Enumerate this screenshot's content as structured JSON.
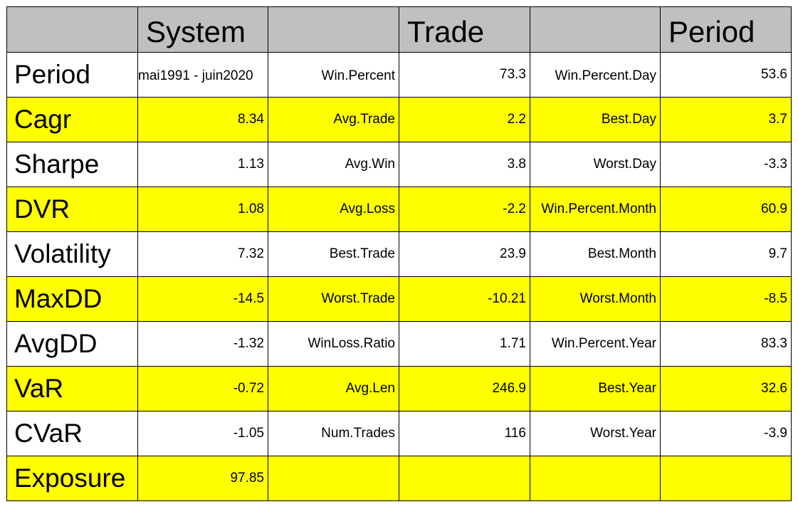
{
  "chart_data": {
    "type": "table",
    "headers": [
      "",
      "System",
      "",
      "Trade",
      "",
      "Period"
    ],
    "rows": [
      [
        "Period",
        "mai1991 - juin2020",
        "Win.Percent",
        "73.3",
        "Win.Percent.Day",
        "53.6"
      ],
      [
        "Cagr",
        "8.34",
        "Avg.Trade",
        "2.2",
        "Best.Day",
        "3.7"
      ],
      [
        "Sharpe",
        "1.13",
        "Avg.Win",
        "3.8",
        "Worst.Day",
        "-3.3"
      ],
      [
        "DVR",
        "1.08",
        "Avg.Loss",
        "-2.2",
        "Win.Percent.Month",
        "60.9"
      ],
      [
        "Volatility",
        "7.32",
        "Best.Trade",
        "23.9",
        "Best.Month",
        "9.7"
      ],
      [
        "MaxDD",
        "-14.5",
        "Worst.Trade",
        "-10.21",
        "Worst.Month",
        "-8.5"
      ],
      [
        "AvgDD",
        "-1.32",
        "WinLoss.Ratio",
        "1.71",
        "Win.Percent.Year",
        "83.3"
      ],
      [
        "VaR",
        "-0.72",
        "Avg.Len",
        "246.9",
        "Best.Year",
        "32.6"
      ],
      [
        "CVaR",
        "-1.05",
        "Num.Trades",
        "116",
        "Worst.Year",
        "-3.9"
      ],
      [
        "Exposure",
        "97.85",
        "",
        "",
        "",
        ""
      ]
    ],
    "header_color": "#c0c0c0",
    "stripe_colors": [
      "#ffffff",
      "#ffff00"
    ]
  }
}
